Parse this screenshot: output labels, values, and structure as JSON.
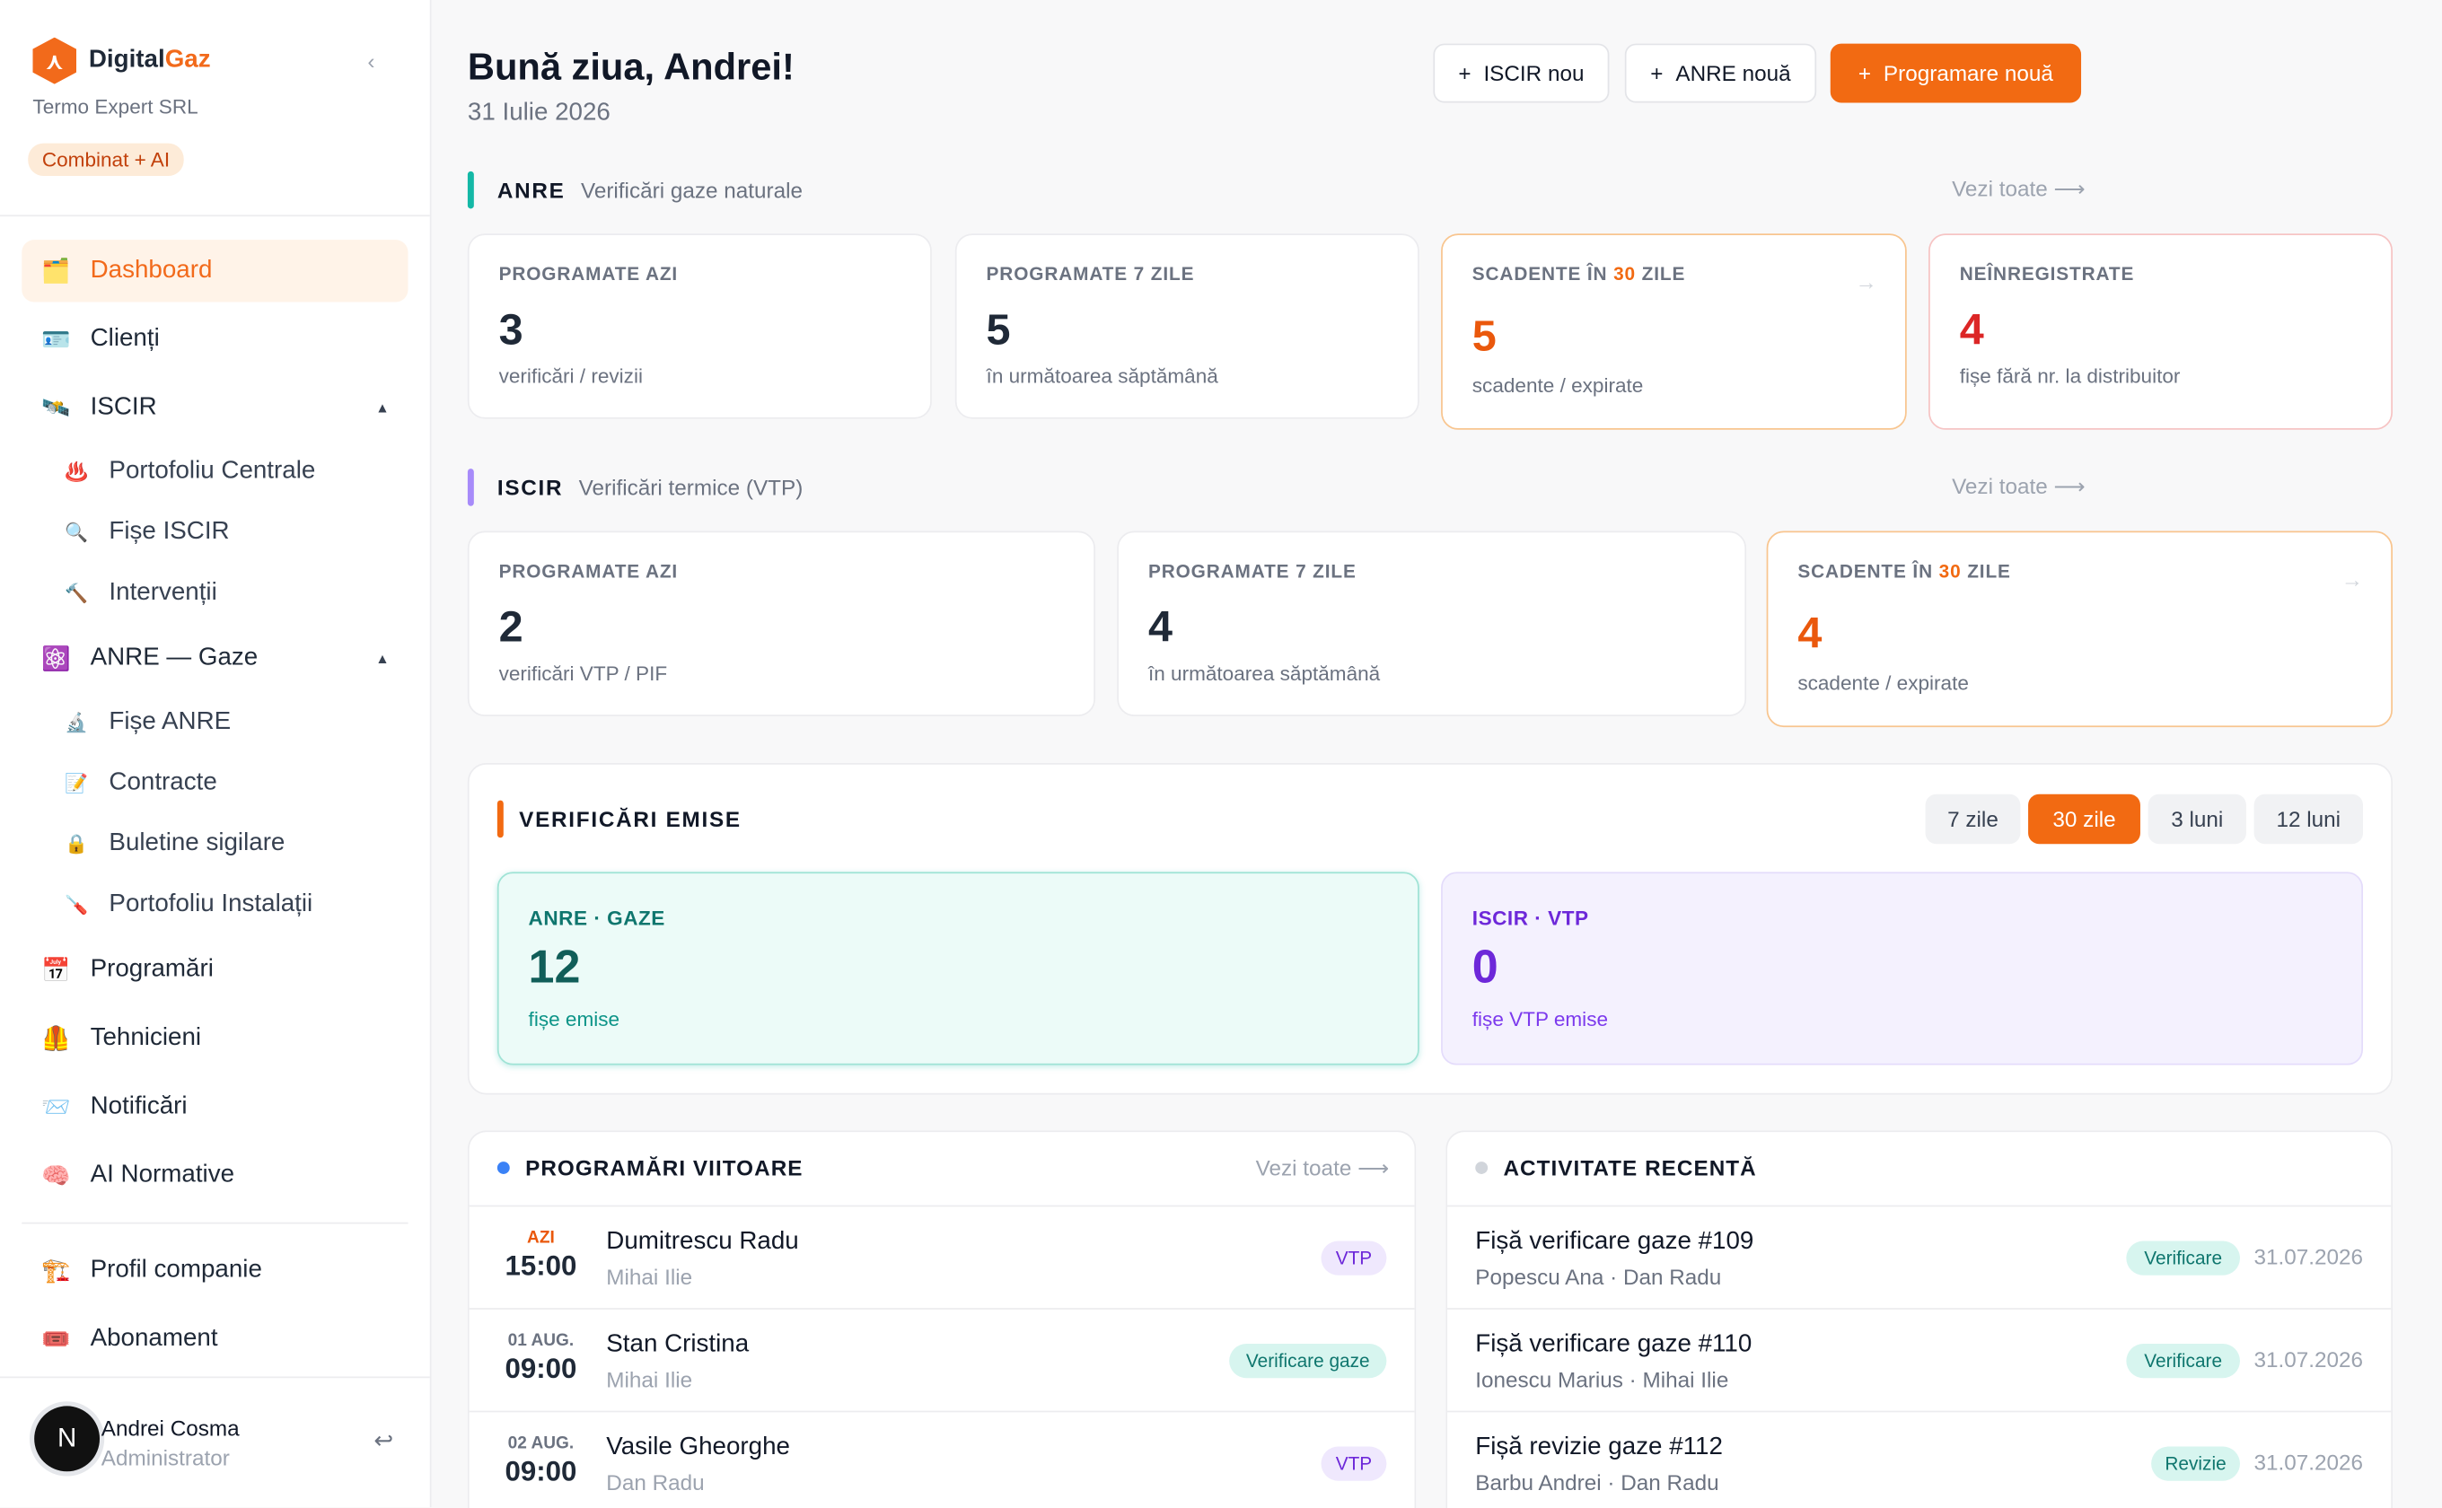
{
  "brand": {
    "name_main": "Digital",
    "name_accent": "Gaz",
    "company": "Termo Expert SRL",
    "plan": "Combinat + AI"
  },
  "nav": {
    "dashboard": "Dashboard",
    "clienti": "Clienți",
    "iscir": "ISCIR",
    "portofoliu_centrale": "Portofoliu Centrale",
    "fise_iscir": "Fișe ISCIR",
    "interventii": "Intervenții",
    "anre": "ANRE — Gaze",
    "fise_anre": "Fișe ANRE",
    "contracte": "Contracte",
    "buletine": "Buletine sigilare",
    "portofoliu_instalatii": "Portofoliu Instalații",
    "programari": "Programări",
    "tehnicieni": "Tehnicieni",
    "notificari": "Notificări",
    "ai_normative": "AI Normative",
    "profil_companie": "Profil companie",
    "abonament": "Abonament"
  },
  "user": {
    "initial": "N",
    "name": "Andrei Cosma",
    "role": "Administrator"
  },
  "header": {
    "greeting": "Bună ziua, Andrei!",
    "date": "31 Iulie 2026",
    "btn_iscir": "ISCIR nou",
    "btn_anre": "ANRE nouă",
    "btn_programare": "Programare nouă"
  },
  "anre": {
    "title": "ANRE",
    "subtitle": "Verificări gaze naturale",
    "see_all": "Vezi toate",
    "cards": [
      {
        "label": "PROGRAMATE AZI",
        "value": "3",
        "sub": "verificări / revizii"
      },
      {
        "label": "PROGRAMATE 7 ZILE",
        "value": "5",
        "sub": "în următoarea săptămână"
      },
      {
        "label_pre": "SCADENTE ÎN ",
        "label_hl": "30",
        "label_post": " ZILE",
        "value": "5",
        "sub": "scadente / expirate"
      },
      {
        "label": "NEÎNREGISTRATE",
        "value": "4",
        "sub": "fișe fără nr. la distribuitor"
      }
    ]
  },
  "iscir": {
    "title": "ISCIR",
    "subtitle": "Verificări termice (VTP)",
    "see_all": "Vezi toate",
    "cards": [
      {
        "label": "PROGRAMATE AZI",
        "value": "2",
        "sub": "verificări VTP / PIF"
      },
      {
        "label": "PROGRAMATE 7 ZILE",
        "value": "4",
        "sub": "în următoarea săptămână"
      },
      {
        "label_pre": "SCADENTE ÎN ",
        "label_hl": "30",
        "label_post": " ZILE",
        "value": "4",
        "sub": "scadente / expirate"
      }
    ]
  },
  "emise": {
    "title": "VERIFICĂRI EMISE",
    "ranges": [
      "7 zile",
      "30 zile",
      "3 luni",
      "12 luni"
    ],
    "selected_range": "30 zile",
    "anre": {
      "label": "ANRE · GAZE",
      "value": "12",
      "sub": "fișe emise"
    },
    "iscir": {
      "label": "ISCIR · VTP",
      "value": "0",
      "sub": "fișe VTP emise"
    }
  },
  "programari": {
    "title": "PROGRAMĂRI VIITOARE",
    "see_all": "Vezi toate",
    "rows": [
      {
        "day": "AZI",
        "time": "15:00",
        "name": "Dumitrescu Radu",
        "tech": "Mihai Ilie",
        "tag": "VTP"
      },
      {
        "day": "01 AUG.",
        "time": "09:00",
        "name": "Stan Cristina",
        "tech": "Mihai Ilie",
        "tag": "Verificare gaze"
      },
      {
        "day": "02 AUG.",
        "time": "09:00",
        "name": "Vasile Gheorghe",
        "tech": "Dan Radu",
        "tag": "VTP"
      }
    ]
  },
  "activitate": {
    "title": "ACTIVITATE RECENTĂ",
    "rows": [
      {
        "name": "Fișă verificare gaze #109",
        "meta": "Popescu Ana · Dan Radu",
        "tag": "Verificare",
        "date": "31.07.2026"
      },
      {
        "name": "Fișă verificare gaze #110",
        "meta": "Ionescu Marius · Mihai Ilie",
        "tag": "Verificare",
        "date": "31.07.2026"
      },
      {
        "name": "Fișă revizie gaze #112",
        "meta": "Barbu Andrei · Dan Radu",
        "tag": "Revizie",
        "date": "31.07.2026"
      }
    ]
  },
  "colors": {
    "accent": "#f26a12",
    "anre_bar": "#14b8a6",
    "iscir_bar": "#a78bfa",
    "emise_bar": "#f26a12"
  },
  "icons": [
    "hexagon-logo-icon",
    "chevron-left-icon",
    "folder-icon",
    "id-card-icon",
    "satellite-icon",
    "fire-icon",
    "magnifier-icon",
    "hammer-icon",
    "molecule-icon",
    "microscope-icon",
    "document-icon",
    "lock-icon",
    "wrench-icon",
    "calendar-icon",
    "helmet-icon",
    "envelope-icon",
    "brain-icon",
    "building-icon",
    "ticket-icon",
    "logout-icon",
    "plus-icon",
    "arrow-right-icon"
  ]
}
